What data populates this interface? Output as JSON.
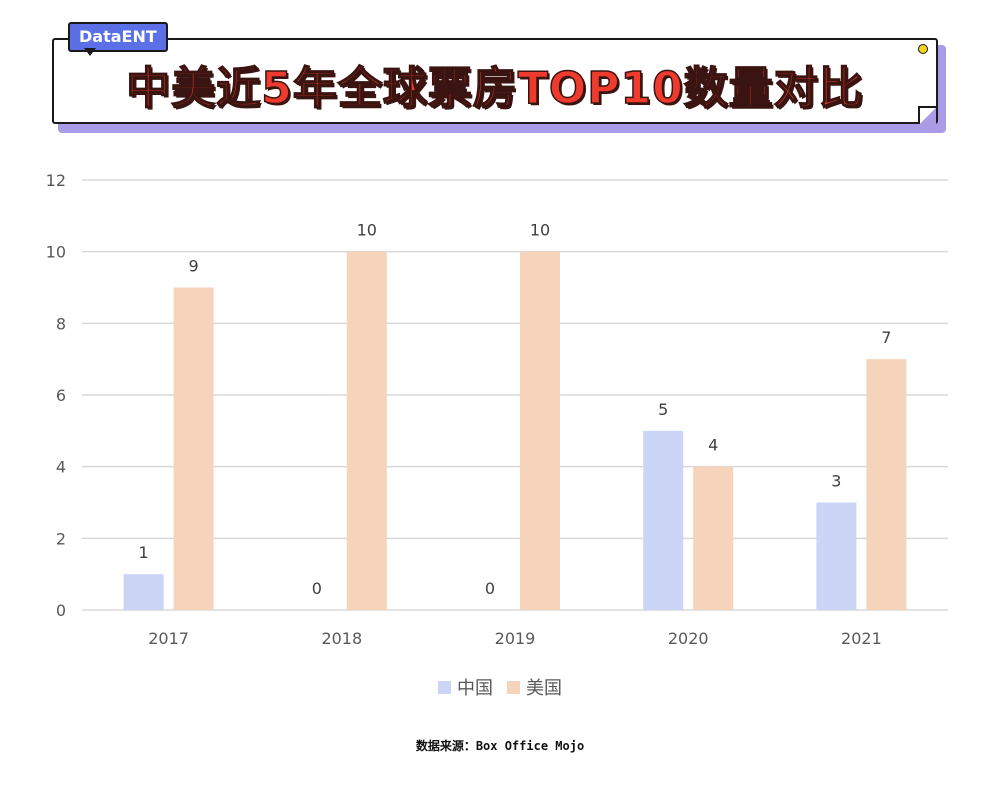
{
  "header": {
    "tag_label": "DataENT",
    "title": "中美近5年全球票房TOP10数量对比"
  },
  "source_note": "数据来源：Box Office Mojo",
  "colors": {
    "china": "#ccd5f6",
    "usa": "#f6d3bb",
    "grid": "#d9d9d9",
    "title_red": "#ee3b2e",
    "tag_blue": "#5b6fe6",
    "banner_shadow": "#a99be6"
  },
  "chart_data": {
    "type": "bar",
    "categories": [
      "2017",
      "2018",
      "2019",
      "2020",
      "2021"
    ],
    "series": [
      {
        "name": "中国",
        "values": [
          1,
          0,
          0,
          5,
          3
        ]
      },
      {
        "name": "美国",
        "values": [
          9,
          10,
          10,
          4,
          7
        ]
      }
    ],
    "yticks": [
      0,
      2,
      4,
      6,
      8,
      10,
      12
    ],
    "ylim": [
      0,
      12
    ],
    "grid": true,
    "legend_position": "bottom"
  }
}
